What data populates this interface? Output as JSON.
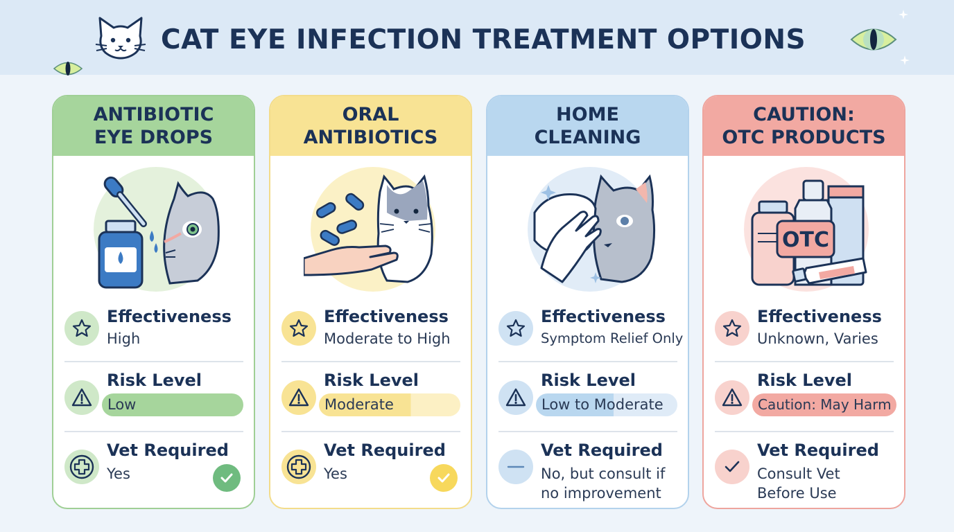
{
  "header": {
    "title": "CAT EYE INFECTION TREATMENT OPTIONS",
    "icons": [
      "cat-face-icon",
      "cat-eye-icon"
    ]
  },
  "colors": {
    "green": "#a6d59c",
    "yellow": "#f8e394",
    "blue": "#b9d7ef",
    "red": "#f2a9a2",
    "navy": "#1b3257"
  },
  "labels": {
    "effectiveness": "Effectiveness",
    "risk": "Risk Level",
    "vet": "Vet Required"
  },
  "cards": [
    {
      "title_line1": "ANTIBIOTIC",
      "title_line2": "EYE DROPS",
      "effectiveness": "High",
      "risk": "Low",
      "risk_fill": 1.0,
      "vet_line1": "Yes",
      "vet_line2": "",
      "vet_icon": "cross-circle-icon",
      "check": true
    },
    {
      "title_line1": "ORAL",
      "title_line2": "ANTIBIOTICS",
      "effectiveness": "Moderate to High",
      "risk": "Moderate",
      "risk_fill": 0.65,
      "vet_line1": "Yes",
      "vet_line2": "",
      "vet_icon": "cross-circle-icon",
      "check": true
    },
    {
      "title_line1": "HOME",
      "title_line2": "CLEANING",
      "effectiveness": "Symptom Relief Only",
      "risk": "Low to Moderate",
      "risk_fill": 0.55,
      "vet_line1": "No, but consult if",
      "vet_line2": "no improvement",
      "vet_icon": "minus-circle-icon",
      "check": false
    },
    {
      "title_line1": "CAUTION:",
      "title_line2": "OTC PRODUCTS",
      "effectiveness": "Unknown, Varies",
      "risk": "Caution: May Harm",
      "risk_fill": 1.0,
      "vet_line1": "Consult Vet",
      "vet_line2": "Before Use",
      "vet_icon": "checkmark-circle-icon",
      "check": false
    }
  ],
  "otc_label": "OTC"
}
